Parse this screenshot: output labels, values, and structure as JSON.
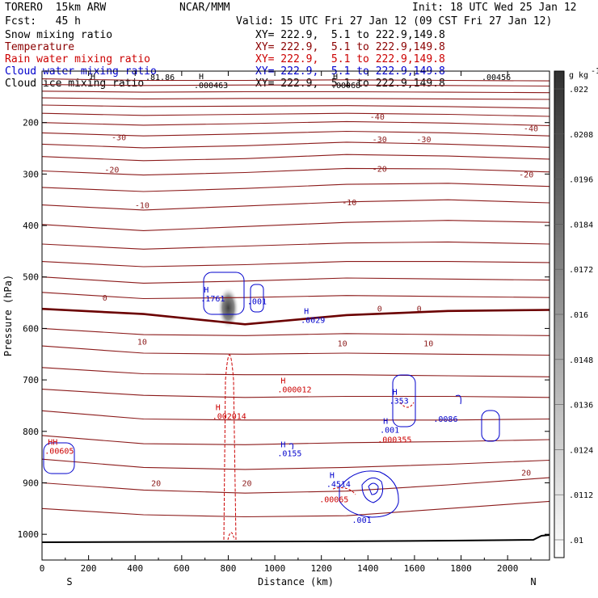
{
  "header": {
    "model": "TORERO  15km ARW",
    "center": "NCAR/MMM",
    "init": "Init: 18 UTC Wed 25 Jan 12",
    "fcst": "Fcst:   45 h",
    "valid": "Valid: 15 UTC Fri 27 Jan 12 (09 CST Fri 27 Jan 12)"
  },
  "legend": [
    {
      "name": "Snow mixing ratio",
      "xy": "XY= 222.9,  5.1 to 222.9,149.8",
      "color": "#000000"
    },
    {
      "name": "Temperature",
      "xy": "XY= 222.9,  5.1 to 222.9,149.8",
      "color": "#8b0000"
    },
    {
      "name": "Rain water mixing ratio",
      "xy": "XY= 222.9,  5.1 to 222.9,149.8",
      "color": "#cc0000"
    },
    {
      "name": "Cloud water mixing ratio",
      "xy": "XY= 222.9,  5.1 to 222.9,149.8",
      "color": "#0000cc"
    },
    {
      "name": "Cloud ice mixing ratio",
      "xy": "XY= 222.9,  5.1 to 222.9,149.8",
      "color": "#000000"
    }
  ],
  "chart_data": {
    "type": "cross-section",
    "xlabel": "Distance (km)",
    "ylabel": "Pressure (hPa)",
    "xlim": [
      0,
      2180
    ],
    "ylim": [
      1050,
      100
    ],
    "x_ticks": [
      0,
      200,
      400,
      600,
      800,
      1000,
      1200,
      1400,
      1600,
      1800,
      2000
    ],
    "y_ticks": [
      200,
      300,
      400,
      500,
      600,
      700,
      800,
      900,
      1000
    ],
    "side_labels": {
      "left": "S",
      "right": "N"
    },
    "colorbar": {
      "unit": "g kg",
      "unit_exponent": "-1",
      "labels": [
        ".01",
        ".0112",
        ".0124",
        ".0136",
        ".0148",
        ".016",
        ".0172",
        ".0184",
        ".0196",
        ".0208",
        ".022"
      ]
    },
    "temperature_labels": [
      {
        "x": 330,
        "p": 228,
        "text": "-30"
      },
      {
        "x": 1440,
        "p": 188,
        "text": "-40"
      },
      {
        "x": 2100,
        "p": 211,
        "text": "-40"
      },
      {
        "x": 1450,
        "p": 232,
        "text": "-30"
      },
      {
        "x": 1640,
        "p": 232,
        "text": "-30"
      },
      {
        "x": 300,
        "p": 291,
        "text": "-20"
      },
      {
        "x": 1450,
        "p": 289,
        "text": "-20"
      },
      {
        "x": 2080,
        "p": 300,
        "text": "-20"
      },
      {
        "x": 430,
        "p": 360,
        "text": "-10"
      },
      {
        "x": 1320,
        "p": 354,
        "text": "-10"
      },
      {
        "x": 270,
        "p": 540,
        "text": "0"
      },
      {
        "x": 1450,
        "p": 561,
        "text": "0"
      },
      {
        "x": 1620,
        "p": 561,
        "text": "0"
      },
      {
        "x": 430,
        "p": 625,
        "text": "10"
      },
      {
        "x": 1290,
        "p": 628,
        "text": "10"
      },
      {
        "x": 1660,
        "p": 628,
        "text": "10"
      },
      {
        "x": 490,
        "p": 900,
        "text": "20"
      },
      {
        "x": 880,
        "p": 900,
        "text": "20"
      },
      {
        "x": 2080,
        "p": 880,
        "text": "20"
      }
    ],
    "max_labels": [
      {
        "x": 730,
        "p": 540,
        "h": "H",
        "v": ".1761",
        "color": "#0000cc"
      },
      {
        "x": 930,
        "p": 545,
        "h": "",
        "v": ".001",
        "color": "#0000cc"
      },
      {
        "x": 1160,
        "p": 581,
        "h": "H",
        "v": ".0029",
        "color": "#0000cc"
      },
      {
        "x": 1060,
        "p": 716,
        "h": "H",
        "v": ".000012",
        "color": "#cc0000"
      },
      {
        "x": 780,
        "p": 768,
        "h": "H",
        "v": ".002014",
        "color": "#cc0000"
      },
      {
        "x": 1540,
        "p": 738,
        "h": "H",
        "v": ".353",
        "color": "#0000cc"
      },
      {
        "x": 1500,
        "p": 795,
        "h": "H",
        "v": ".001",
        "color": "#0000cc"
      },
      {
        "x": 1490,
        "p": 814,
        "h": "",
        "v": ".000355",
        "color": "#cc0000"
      },
      {
        "x": 1730,
        "p": 774,
        "h": "",
        "v": ".0086",
        "color": "#0000cc"
      },
      {
        "x": 60,
        "p": 836,
        "h": "HH",
        "v": ".00605",
        "color": "#cc0000"
      },
      {
        "x": 1060,
        "p": 840,
        "h": "H",
        "v": ".0155",
        "color": "#0000cc"
      },
      {
        "x": 1270,
        "p": 900,
        "h": "H",
        "v": ".4514",
        "color": "#0000cc"
      },
      {
        "x": 1240,
        "p": 930,
        "h": "",
        "v": ".00065",
        "color": "#cc0000"
      },
      {
        "x": 1380,
        "p": 970,
        "h": "",
        "v": ".001",
        "color": "#0000cc"
      }
    ],
    "top_labels": [
      "H",
      ".81.86",
      "H",
      ".000463",
      "H",
      ".00068",
      ".00456"
    ]
  }
}
